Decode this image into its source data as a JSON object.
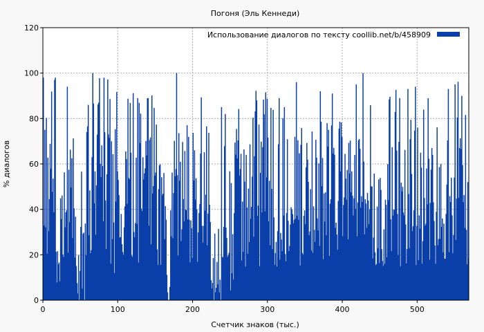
{
  "chart_data": {
    "type": "bar",
    "title": "Погоня (Эль Кеннеди)",
    "xlabel": "Счетчик знаков (тыс.)",
    "ylabel": "% диалогов",
    "xlim": [
      0,
      569
    ],
    "ylim": [
      0,
      120
    ],
    "xticks": [
      0,
      100,
      200,
      300,
      400,
      500
    ],
    "yticks": [
      0,
      20,
      40,
      60,
      80,
      100,
      120
    ],
    "grid": true,
    "legend_position": "top-right",
    "series": [
      {
        "name": "Использование диалогов по тексту  coollib.net/b/458909",
        "color": "#0a3ea8",
        "point_step": 1,
        "segments": [
          {
            "from": 0,
            "to": 5,
            "level": 62
          },
          {
            "from": 5,
            "to": 17,
            "level": 55
          },
          {
            "from": 17,
            "to": 24,
            "level": 24
          },
          {
            "from": 24,
            "to": 45,
            "level": 50
          },
          {
            "from": 45,
            "to": 56,
            "level": 12
          },
          {
            "from": 56,
            "to": 64,
            "level": 40
          },
          {
            "from": 64,
            "to": 90,
            "level": 55
          },
          {
            "from": 90,
            "to": 96,
            "level": 30
          },
          {
            "from": 96,
            "to": 145,
            "level": 48
          },
          {
            "from": 145,
            "to": 152,
            "level": 62
          },
          {
            "from": 152,
            "to": 165,
            "level": 40
          },
          {
            "from": 165,
            "to": 172,
            "level": 8
          },
          {
            "from": 172,
            "to": 205,
            "level": 50
          },
          {
            "from": 205,
            "to": 222,
            "level": 45
          },
          {
            "from": 222,
            "to": 238,
            "level": 10
          },
          {
            "from": 238,
            "to": 250,
            "level": 35
          },
          {
            "from": 250,
            "to": 255,
            "level": 12
          },
          {
            "from": 255,
            "to": 350,
            "level": 48
          },
          {
            "from": 350,
            "to": 360,
            "level": 35
          },
          {
            "from": 360,
            "to": 440,
            "level": 55
          },
          {
            "from": 440,
            "to": 455,
            "level": 30
          },
          {
            "from": 455,
            "to": 540,
            "level": 48
          },
          {
            "from": 540,
            "to": 569,
            "level": 52
          }
        ],
        "peaks": [
          {
            "x": 2,
            "value": 75
          },
          {
            "x": 15,
            "value": 97
          },
          {
            "x": 32,
            "value": 94
          },
          {
            "x": 60,
            "value": 86
          },
          {
            "x": 66,
            "value": 100
          },
          {
            "x": 74,
            "value": 87
          },
          {
            "x": 87,
            "value": 73
          },
          {
            "x": 126,
            "value": 89
          },
          {
            "x": 140,
            "value": 89
          },
          {
            "x": 178,
            "value": 100
          },
          {
            "x": 238,
            "value": 85
          },
          {
            "x": 243,
            "value": 82
          },
          {
            "x": 285,
            "value": 88
          },
          {
            "x": 315,
            "value": 89
          },
          {
            "x": 322,
            "value": 85
          },
          {
            "x": 338,
            "value": 96
          },
          {
            "x": 370,
            "value": 92
          },
          {
            "x": 386,
            "value": 91
          },
          {
            "x": 418,
            "value": 95
          },
          {
            "x": 427,
            "value": 100
          },
          {
            "x": 476,
            "value": 89
          },
          {
            "x": 487,
            "value": 93
          },
          {
            "x": 497,
            "value": 94
          },
          {
            "x": 541,
            "value": 93
          },
          {
            "x": 550,
            "value": 95
          },
          {
            "x": 559,
            "value": 90
          }
        ]
      }
    ]
  }
}
